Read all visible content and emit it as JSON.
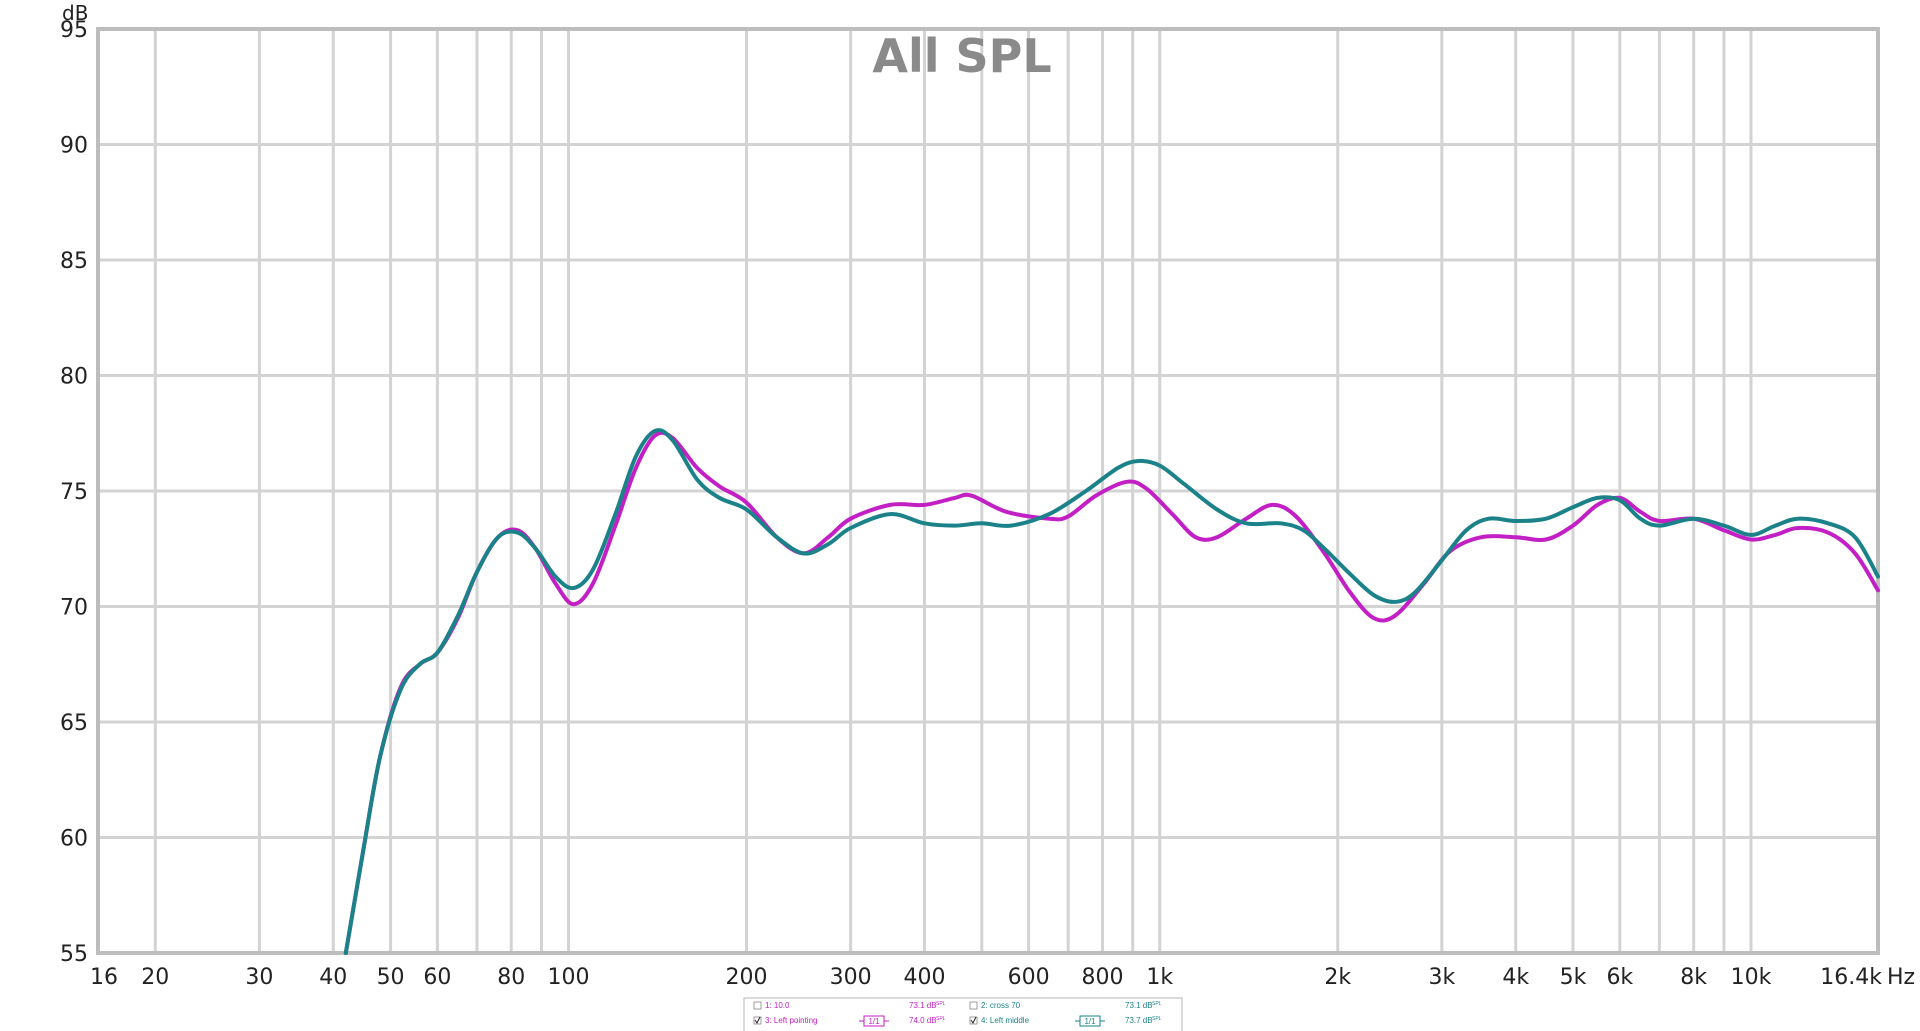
{
  "chart_data": {
    "type": "line",
    "title": "All SPL",
    "ylabel": "dB",
    "xlabel": "Hz",
    "xscale": "log",
    "xlim": [
      16,
      16400
    ],
    "ylim": [
      55,
      95
    ],
    "grid": true,
    "yticks": [
      55,
      60,
      65,
      70,
      75,
      80,
      85,
      90,
      95
    ],
    "xticks": [
      {
        "v": 16,
        "label": "16"
      },
      {
        "v": 20,
        "label": "20"
      },
      {
        "v": 30,
        "label": "30"
      },
      {
        "v": 40,
        "label": "40"
      },
      {
        "v": 50,
        "label": "50"
      },
      {
        "v": 60,
        "label": "60"
      },
      {
        "v": 80,
        "label": "80"
      },
      {
        "v": 100,
        "label": "100"
      },
      {
        "v": 200,
        "label": "200"
      },
      {
        "v": 300,
        "label": "300"
      },
      {
        "v": 400,
        "label": "400"
      },
      {
        "v": 600,
        "label": "600"
      },
      {
        "v": 800,
        "label": "800"
      },
      {
        "v": 1000,
        "label": "1k"
      },
      {
        "v": 2000,
        "label": "2k"
      },
      {
        "v": 3000,
        "label": "3k"
      },
      {
        "v": 4000,
        "label": "4k"
      },
      {
        "v": 5000,
        "label": "5k"
      },
      {
        "v": 6000,
        "label": "6k"
      },
      {
        "v": 8000,
        "label": "8k"
      },
      {
        "v": 10000,
        "label": "10k"
      },
      {
        "v": 16400,
        "label": "16.4k"
      }
    ],
    "gridlines_x": [
      16,
      20,
      30,
      40,
      50,
      60,
      70,
      80,
      90,
      100,
      200,
      300,
      400,
      500,
      600,
      700,
      800,
      900,
      1000,
      2000,
      3000,
      4000,
      5000,
      6000,
      7000,
      8000,
      9000,
      10000
    ],
    "series": [
      {
        "name": "3: Left pointing",
        "color": "#c21fc4",
        "points": [
          [
            42,
            55
          ],
          [
            45,
            59.5
          ],
          [
            48,
            63.5
          ],
          [
            52,
            66.5
          ],
          [
            56,
            67.5
          ],
          [
            60,
            68
          ],
          [
            65,
            69.5
          ],
          [
            70,
            71.5
          ],
          [
            76,
            73
          ],
          [
            82,
            73.3
          ],
          [
            88,
            72.5
          ],
          [
            95,
            71
          ],
          [
            102,
            70.1
          ],
          [
            110,
            71
          ],
          [
            120,
            73.5
          ],
          [
            130,
            76
          ],
          [
            140,
            77.4
          ],
          [
            150,
            77.3
          ],
          [
            165,
            76
          ],
          [
            180,
            75.2
          ],
          [
            200,
            74.5
          ],
          [
            225,
            73
          ],
          [
            250,
            72.3
          ],
          [
            275,
            73
          ],
          [
            300,
            73.8
          ],
          [
            350,
            74.4
          ],
          [
            400,
            74.4
          ],
          [
            450,
            74.7
          ],
          [
            480,
            74.8
          ],
          [
            550,
            74.1
          ],
          [
            650,
            73.8
          ],
          [
            700,
            73.9
          ],
          [
            780,
            74.8
          ],
          [
            880,
            75.4
          ],
          [
            950,
            75.1
          ],
          [
            1050,
            74
          ],
          [
            1150,
            73
          ],
          [
            1250,
            73
          ],
          [
            1400,
            73.8
          ],
          [
            1550,
            74.4
          ],
          [
            1700,
            73.9
          ],
          [
            1900,
            72.3
          ],
          [
            2100,
            70.6
          ],
          [
            2300,
            69.5
          ],
          [
            2500,
            69.6
          ],
          [
            2800,
            71
          ],
          [
            3100,
            72.4
          ],
          [
            3500,
            73
          ],
          [
            4000,
            73
          ],
          [
            4500,
            72.9
          ],
          [
            5000,
            73.5
          ],
          [
            5500,
            74.4
          ],
          [
            6000,
            74.7
          ],
          [
            6500,
            74.1
          ],
          [
            7000,
            73.7
          ],
          [
            8000,
            73.8
          ],
          [
            9000,
            73.3
          ],
          [
            10000,
            72.9
          ],
          [
            11000,
            73.1
          ],
          [
            12000,
            73.4
          ],
          [
            13500,
            73.2
          ],
          [
            15000,
            72.3
          ],
          [
            16400,
            70.7
          ]
        ]
      },
      {
        "name": "4: Left middle",
        "color": "#1b8289",
        "points": [
          [
            42,
            55
          ],
          [
            45,
            59.5
          ],
          [
            48,
            63.5
          ],
          [
            52,
            66.4
          ],
          [
            56,
            67.5
          ],
          [
            60,
            68
          ],
          [
            65,
            69.6
          ],
          [
            70,
            71.5
          ],
          [
            76,
            73
          ],
          [
            82,
            73.2
          ],
          [
            88,
            72.5
          ],
          [
            95,
            71.3
          ],
          [
            102,
            70.8
          ],
          [
            110,
            71.6
          ],
          [
            120,
            74
          ],
          [
            130,
            76.5
          ],
          [
            140,
            77.6
          ],
          [
            150,
            77.2
          ],
          [
            165,
            75.5
          ],
          [
            180,
            74.7
          ],
          [
            200,
            74.2
          ],
          [
            225,
            73
          ],
          [
            250,
            72.3
          ],
          [
            275,
            72.7
          ],
          [
            300,
            73.4
          ],
          [
            350,
            74
          ],
          [
            400,
            73.6
          ],
          [
            450,
            73.5
          ],
          [
            500,
            73.6
          ],
          [
            560,
            73.5
          ],
          [
            650,
            74
          ],
          [
            750,
            75
          ],
          [
            850,
            76
          ],
          [
            920,
            76.3
          ],
          [
            1000,
            76.1
          ],
          [
            1100,
            75.3
          ],
          [
            1250,
            74.2
          ],
          [
            1400,
            73.6
          ],
          [
            1600,
            73.6
          ],
          [
            1750,
            73.3
          ],
          [
            1900,
            72.5
          ],
          [
            2100,
            71.4
          ],
          [
            2300,
            70.5
          ],
          [
            2500,
            70.2
          ],
          [
            2700,
            70.6
          ],
          [
            3000,
            72
          ],
          [
            3300,
            73.3
          ],
          [
            3600,
            73.8
          ],
          [
            4000,
            73.7
          ],
          [
            4500,
            73.8
          ],
          [
            5000,
            74.3
          ],
          [
            5500,
            74.7
          ],
          [
            6000,
            74.6
          ],
          [
            6500,
            73.8
          ],
          [
            7000,
            73.5
          ],
          [
            8000,
            73.8
          ],
          [
            9000,
            73.5
          ],
          [
            10000,
            73.1
          ],
          [
            11000,
            73.5
          ],
          [
            12000,
            73.8
          ],
          [
            13500,
            73.6
          ],
          [
            15000,
            73
          ],
          [
            16400,
            71.3
          ]
        ]
      }
    ]
  },
  "legend": {
    "items": [
      {
        "checked": false,
        "label": "1: 10.0",
        "value": "73.1 dB",
        "unit": "SPL",
        "color": "#c21fc4",
        "smoothing": ""
      },
      {
        "checked": false,
        "label": "2: cross 70",
        "value": "73.1 dB",
        "unit": "SPL",
        "color": "#1b8289",
        "smoothing": ""
      },
      {
        "checked": true,
        "label": "3: Left pointing",
        "value": "74.0 dB",
        "unit": "SPL",
        "color": "#c21fc4",
        "smoothing": "1/1"
      },
      {
        "checked": true,
        "label": "4: Left middle",
        "value": "73.7 dB",
        "unit": "SPL",
        "color": "#1b8289",
        "smoothing": "1/1"
      }
    ]
  }
}
